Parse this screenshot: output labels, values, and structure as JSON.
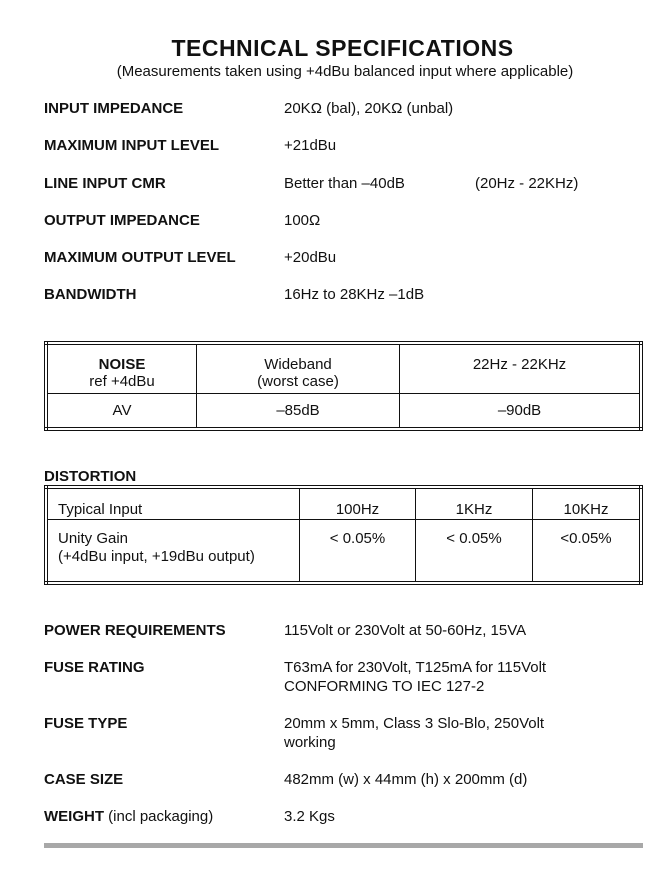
{
  "title": "TECHNICAL SPECIFICATIONS",
  "subtitle": "(Measurements taken using +4dBu balanced input where applicable)",
  "specs_top": [
    {
      "label": "INPUT IMPEDANCE",
      "value": "20KΩ (bal), 20KΩ (unbal)"
    },
    {
      "label": "MAXIMUM INPUT LEVEL",
      "value": "+21dBu"
    },
    {
      "label": "LINE INPUT CMR",
      "value": "Better than –40dB",
      "extra": "(20Hz - 22KHz)"
    },
    {
      "label": "OUTPUT IMPEDANCE",
      "value": "100Ω"
    },
    {
      "label": "MAXIMUM OUTPUT LEVEL",
      "value": "+20dBu"
    },
    {
      "label": "BANDWIDTH",
      "value": "16Hz to 28KHz –1dB"
    }
  ],
  "noise_table": {
    "header": {
      "title": "NOISE",
      "ref": "ref +4dBu",
      "col1": "Wideband",
      "col1b": "(worst case)",
      "col2": "22Hz - 22KHz"
    },
    "row": {
      "label": "AV",
      "col1": "–85dB",
      "col2": "–90dB"
    }
  },
  "distortion": {
    "heading": "DISTORTION",
    "headers": [
      "Typical Input",
      "100Hz",
      "1KHz",
      "10KHz"
    ],
    "row": {
      "label": "Unity Gain",
      "label2": "(+4dBu input, +19dBu output)",
      "values": [
        "< 0.05%",
        "< 0.05%",
        "<0.05%"
      ]
    }
  },
  "specs_bottom": [
    {
      "label": "POWER REQUIREMENTS",
      "value": "115Volt or 230Volt at 50-60Hz, 15VA"
    },
    {
      "label": "FUSE RATING",
      "value": "T63mA for 230Volt, T125mA for 115Volt",
      "value2": "CONFORMING TO IEC 127-2"
    },
    {
      "label": "FUSE TYPE",
      "value": "20mm x 5mm, Class 3 Slo-Blo, 250Volt",
      "value2": "working"
    },
    {
      "label": "CASE SIZE",
      "value": "482mm (w) x 44mm (h) x 200mm (d)"
    },
    {
      "label": "WEIGHT",
      "label_suffix": " (incl packaging)",
      "value": "3.2 Kgs"
    }
  ]
}
